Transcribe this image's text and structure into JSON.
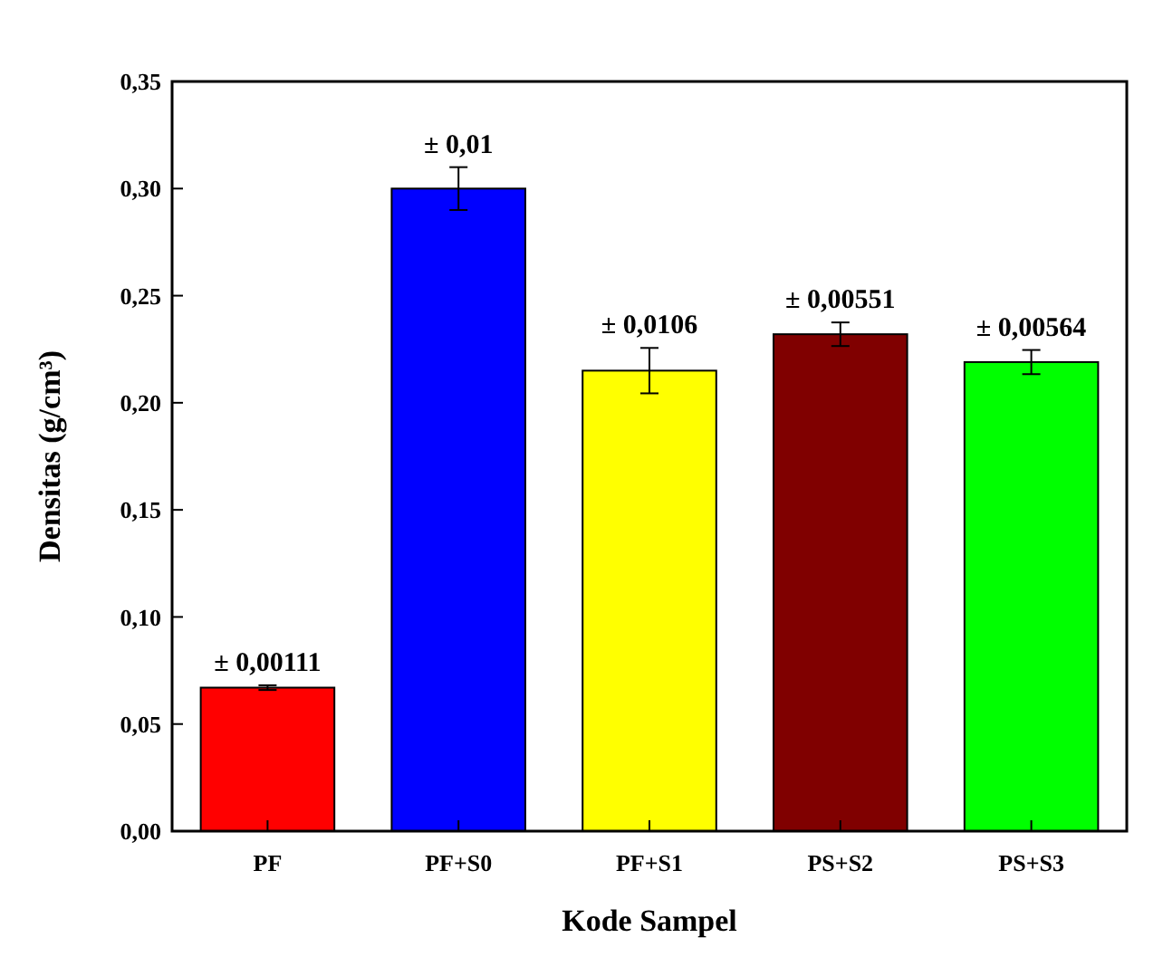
{
  "chart_data": {
    "type": "bar",
    "xlabel": "Kode Sampel",
    "ylabel": "Densitas (g/cm³)",
    "categories": [
      "PF",
      "PF+S0",
      "PF+S1",
      "PS+S2",
      "PS+S3"
    ],
    "values": [
      0.067,
      0.3,
      0.215,
      0.232,
      0.219
    ],
    "colors": [
      "#ff0000",
      "#0000ff",
      "#ffff00",
      "#800000",
      "#00ff00"
    ],
    "errors": [
      0.00111,
      0.01,
      0.0106,
      0.00551,
      0.00564
    ],
    "annotations": [
      {
        "text": "± 0,00111",
        "x": "PF",
        "y": 0.06811
      },
      {
        "text": "± 0,01",
        "x": "PF+S0",
        "y": 0.31
      },
      {
        "text": "± 0,0106",
        "x": "PF+S1",
        "y": 0.2256
      },
      {
        "text": "± 0,00551",
        "x": "PS+S2",
        "y": 0.23751
      },
      {
        "text": "± 0,00564",
        "x": "PS+S3",
        "y": 0.22464
      }
    ],
    "ylim": [
      0,
      0.35
    ],
    "yticks": [
      {
        "value": 0,
        "label": "0,00"
      },
      {
        "value": 0.05,
        "label": "0,05"
      },
      {
        "value": 0.1,
        "label": "0,10"
      },
      {
        "value": 0.15,
        "label": "0,15"
      },
      {
        "value": 0.2,
        "label": "0,20"
      },
      {
        "value": 0.25,
        "label": "0,25"
      },
      {
        "value": 0.3,
        "label": "0,30"
      },
      {
        "value": 0.35,
        "label": "0,35"
      }
    ],
    "grid": false
  }
}
